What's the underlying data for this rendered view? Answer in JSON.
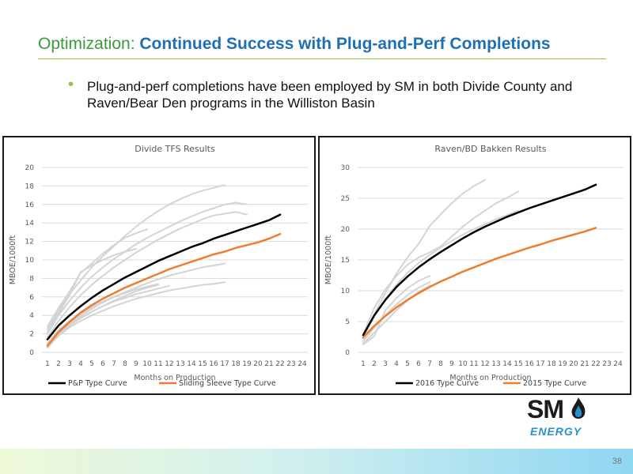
{
  "slide": {
    "title_prefix": "Optimization: ",
    "title_main": "Continued Success with Plug-and-Perf Completions",
    "bullet_text": "Plug-and-perf completions have been employed by SM in both Divide County and Raven/Bear Den programs in the Williston Basin",
    "page_number": "38",
    "logo_text": "SM",
    "logo_subtext": "ENERGY"
  },
  "colors": {
    "black_curve": "#000000",
    "orange_curve": "#ed7d31",
    "gray_curve": "#d4d4d4"
  },
  "chart_data": [
    {
      "type": "line",
      "title": "Divide TFS Results",
      "xlabel": "Months on Production",
      "ylabel": "MBOE/1000ft",
      "categories": [
        1,
        2,
        3,
        4,
        5,
        6,
        7,
        8,
        9,
        10,
        11,
        12,
        13,
        14,
        15,
        16,
        17,
        18,
        19,
        20,
        21,
        22,
        23,
        24
      ],
      "ylim": [
        0,
        20
      ],
      "yticks": [
        0,
        2,
        4,
        6,
        8,
        10,
        12,
        14,
        16,
        18,
        20
      ],
      "grid": true,
      "legend_position": "bottom",
      "series": [
        {
          "name": "P&P Type Curve",
          "color": "#000000",
          "width": 2.5,
          "x": [
            1,
            2,
            3,
            4,
            5,
            6,
            7,
            8,
            9,
            10,
            11,
            12,
            13,
            14,
            15,
            16,
            17,
            18,
            19,
            20,
            21,
            22
          ],
          "y": [
            1.4,
            2.9,
            4.0,
            5.0,
            5.9,
            6.7,
            7.4,
            8.1,
            8.7,
            9.3,
            9.9,
            10.4,
            10.9,
            11.4,
            11.8,
            12.3,
            12.7,
            13.1,
            13.5,
            13.9,
            14.3,
            14.9
          ]
        },
        {
          "name": "Sliding Sleeve Type Curve",
          "color": "#ed7d31",
          "width": 2.5,
          "x": [
            1,
            2,
            3,
            4,
            5,
            6,
            7,
            8,
            9,
            10,
            11,
            12,
            13,
            14,
            15,
            16,
            17,
            18,
            19,
            20,
            21,
            22
          ],
          "y": [
            0.7,
            2.2,
            3.3,
            4.3,
            5.1,
            5.8,
            6.4,
            7.0,
            7.5,
            8.0,
            8.5,
            9.0,
            9.4,
            9.8,
            10.2,
            10.6,
            10.9,
            11.3,
            11.6,
            11.9,
            12.3,
            12.8
          ]
        },
        {
          "color": "#d4d4d4",
          "width": 2,
          "x": [
            1,
            2,
            3,
            4,
            5,
            6,
            7,
            8,
            9,
            10,
            11,
            12,
            13,
            14,
            15,
            16,
            17
          ],
          "y": [
            2.5,
            4.5,
            6.3,
            7.8,
            9.2,
            10.4,
            11.5,
            12.6,
            13.6,
            14.5,
            15.3,
            16.0,
            16.6,
            17.1,
            17.5,
            17.8,
            18.1
          ]
        },
        {
          "color": "#d4d4d4",
          "width": 2,
          "x": [
            1,
            2,
            3,
            4,
            5,
            6,
            7,
            8,
            9,
            10,
            11,
            12,
            13,
            14,
            15,
            16,
            17,
            18,
            19
          ],
          "y": [
            2.0,
            4.0,
            5.6,
            7.0,
            8.2,
            9.2,
            10.1,
            10.9,
            11.7,
            12.4,
            13.0,
            13.6,
            14.2,
            14.7,
            15.2,
            15.6,
            16.0,
            16.2,
            16.0
          ]
        },
        {
          "color": "#d4d4d4",
          "width": 2,
          "x": [
            1,
            2,
            3,
            4,
            5,
            6,
            7,
            8,
            9,
            10,
            11,
            12,
            13,
            14,
            15,
            16,
            17,
            18,
            19
          ],
          "y": [
            1.6,
            3.4,
            4.9,
            6.2,
            7.3,
            8.3,
            9.2,
            10.0,
            10.8,
            11.5,
            12.2,
            12.8,
            13.4,
            13.9,
            14.4,
            14.8,
            15.0,
            15.2,
            14.9
          ]
        },
        {
          "color": "#d4d4d4",
          "width": 2,
          "x": [
            1,
            2,
            3,
            4,
            5,
            6,
            7,
            8,
            9,
            10
          ],
          "y": [
            2.8,
            4.8,
            6.6,
            8.6,
            9.6,
            10.7,
            11.6,
            12.4,
            12.9,
            13.3
          ]
        },
        {
          "color": "#d4d4d4",
          "width": 2,
          "x": [
            1,
            2,
            3,
            4,
            5,
            6,
            7,
            8,
            9
          ],
          "y": [
            2.2,
            4.2,
            6.2,
            8.7,
            9.4,
            10.0,
            10.5,
            10.9,
            11.2
          ]
        },
        {
          "color": "#d4d4d4",
          "width": 2,
          "x": [
            1,
            2,
            3,
            4,
            5,
            6,
            7,
            8,
            9,
            10,
            11,
            12,
            13,
            14,
            15,
            16,
            17
          ],
          "y": [
            0.9,
            2.2,
            3.2,
            4.0,
            4.7,
            5.4,
            6.0,
            6.5,
            7.0,
            7.5,
            7.9,
            8.3,
            8.6,
            8.9,
            9.2,
            9.4,
            9.6
          ]
        },
        {
          "color": "#d4d4d4",
          "width": 2,
          "x": [
            1,
            2,
            3,
            4,
            5,
            6,
            7,
            8,
            9,
            10,
            11,
            12,
            13,
            14,
            15,
            16,
            17
          ],
          "y": [
            0.5,
            1.8,
            2.7,
            3.4,
            4.0,
            4.5,
            5.0,
            5.4,
            5.8,
            6.1,
            6.4,
            6.7,
            6.9,
            7.1,
            7.3,
            7.4,
            7.6
          ]
        },
        {
          "color": "#d4d4d4",
          "width": 2,
          "x": [
            1,
            2,
            3,
            4,
            5,
            6,
            7,
            8,
            9,
            10,
            11
          ],
          "y": [
            1.0,
            2.4,
            3.4,
            4.2,
            4.9,
            5.5,
            6.0,
            6.4,
            6.8,
            7.1,
            7.4
          ]
        },
        {
          "color": "#d4d4d4",
          "width": 2,
          "x": [
            1,
            2,
            3,
            4,
            5,
            6,
            7,
            8,
            9,
            10,
            11,
            12
          ],
          "y": [
            0.8,
            2.1,
            3.0,
            3.8,
            4.4,
            5.0,
            5.5,
            5.9,
            6.3,
            6.6,
            6.9,
            7.2
          ]
        },
        {
          "color": "#d4d4d4",
          "width": 2,
          "x": [
            1,
            2,
            3,
            4,
            5,
            6,
            7,
            8,
            9,
            10,
            11
          ],
          "y": [
            0.6,
            1.9,
            2.9,
            3.7,
            4.4,
            5.0,
            5.6,
            6.1,
            6.6,
            7.0,
            7.3
          ]
        }
      ]
    },
    {
      "type": "line",
      "title": "Raven/BD Bakken Results",
      "xlabel": "Months on Production",
      "ylabel": "MBOE/1000ft",
      "categories": [
        1,
        2,
        3,
        4,
        5,
        6,
        7,
        8,
        9,
        10,
        11,
        12,
        13,
        14,
        15,
        16,
        17,
        18,
        19,
        20,
        21,
        22,
        23,
        24
      ],
      "ylim": [
        0,
        30
      ],
      "yticks": [
        0,
        5,
        10,
        15,
        20,
        25,
        30
      ],
      "grid": true,
      "legend_position": "bottom",
      "series": [
        {
          "name": "2016 Type Curve",
          "color": "#000000",
          "width": 2.5,
          "x": [
            1,
            2,
            3,
            4,
            5,
            6,
            7,
            8,
            9,
            10,
            11,
            12,
            13,
            14,
            15,
            16,
            17,
            18,
            19,
            20,
            21,
            22
          ],
          "y": [
            2.8,
            6.0,
            8.5,
            10.6,
            12.3,
            13.8,
            15.1,
            16.3,
            17.4,
            18.5,
            19.5,
            20.4,
            21.2,
            22.0,
            22.7,
            23.4,
            24.0,
            24.6,
            25.2,
            25.8,
            26.4,
            27.2
          ]
        },
        {
          "name": "2015 Type Curve",
          "color": "#ed7d31",
          "width": 2.5,
          "x": [
            1,
            2,
            3,
            4,
            5,
            6,
            7,
            8,
            9,
            10,
            11,
            12,
            13,
            14,
            15,
            16,
            17,
            18,
            19,
            20,
            21,
            22
          ],
          "y": [
            2.4,
            4.3,
            5.9,
            7.3,
            8.5,
            9.6,
            10.6,
            11.5,
            12.3,
            13.1,
            13.8,
            14.5,
            15.2,
            15.8,
            16.4,
            17.0,
            17.5,
            18.1,
            18.6,
            19.1,
            19.6,
            20.2
          ]
        },
        {
          "color": "#d4d4d4",
          "width": 2,
          "x": [
            1,
            2,
            3,
            4,
            5,
            6,
            7,
            8,
            9,
            10,
            11,
            12
          ],
          "y": [
            2.2,
            6.2,
            9.6,
            12.8,
            15.4,
            17.6,
            20.5,
            22.4,
            24.2,
            25.8,
            27.0,
            28.0
          ]
        },
        {
          "color": "#d4d4d4",
          "width": 2,
          "x": [
            1,
            2,
            3,
            4,
            5,
            6,
            7,
            8,
            9,
            10,
            11,
            12,
            13,
            14,
            15
          ],
          "y": [
            3.0,
            7.2,
            10.2,
            12.4,
            14.2,
            15.4,
            16.2,
            17.2,
            18.8,
            20.4,
            21.8,
            23.0,
            24.2,
            25.1,
            26.1
          ]
        },
        {
          "color": "#d4d4d4",
          "width": 2,
          "x": [
            1,
            2,
            3,
            4,
            5,
            6,
            7,
            8,
            9,
            10,
            11,
            12,
            13,
            14,
            15
          ],
          "y": [
            2.6,
            5.8,
            8.6,
            11.0,
            12.9,
            14.5,
            15.8,
            17.0,
            18.1,
            19.1,
            20.0,
            20.8,
            21.6,
            22.3,
            23.0
          ]
        },
        {
          "color": "#d4d4d4",
          "width": 2,
          "x": [
            1,
            2,
            3,
            4,
            5,
            6,
            7
          ],
          "y": [
            1.3,
            2.6,
            6.8,
            8.8,
            10.4,
            11.6,
            12.4
          ]
        },
        {
          "color": "#d4d4d4",
          "width": 2,
          "x": [
            1,
            2,
            3,
            4,
            5,
            6,
            7
          ],
          "y": [
            1.8,
            4.0,
            6.0,
            7.8,
            9.3,
            10.5,
            11.4
          ]
        },
        {
          "color": "#d4d4d4",
          "width": 2,
          "x": [
            1,
            2,
            3,
            4,
            5,
            6,
            7
          ],
          "y": [
            1.4,
            3.2,
            5.0,
            6.8,
            8.4,
            9.8,
            10.8
          ]
        }
      ]
    }
  ]
}
